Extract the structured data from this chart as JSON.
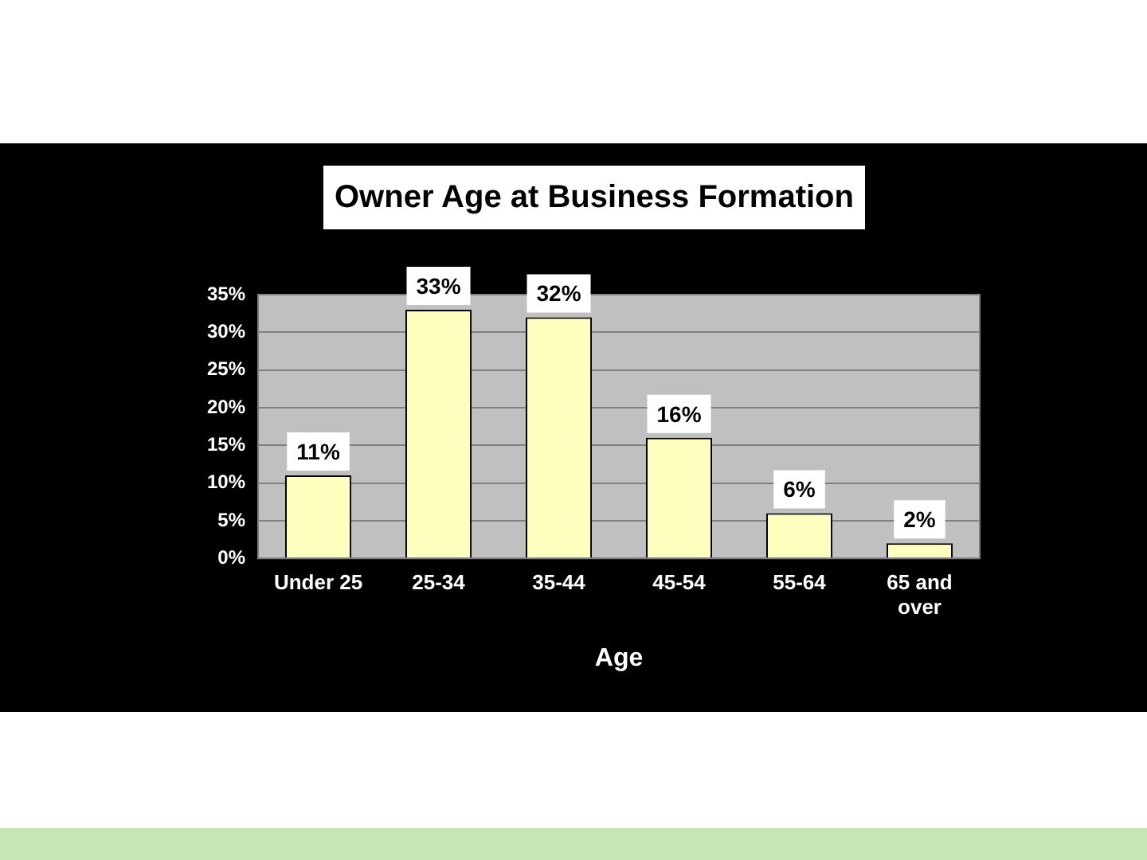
{
  "chart_data": {
    "type": "bar",
    "title": "Owner Age at Business Formation",
    "xlabel": "Age",
    "categories": [
      "Under 25",
      "25-34",
      "35-44",
      "45-54",
      "55-64",
      "65 and over"
    ],
    "values": [
      11,
      33,
      32,
      16,
      6,
      2
    ],
    "value_labels": [
      "11%",
      "33%",
      "32%",
      "16%",
      "6%",
      "2%"
    ],
    "color": "#ffffc0",
    "ylim": [
      0,
      35
    ],
    "yticks": [
      {
        "value": 0,
        "label": "0%"
      },
      {
        "value": 5,
        "label": "5%"
      },
      {
        "value": 10,
        "label": "10%"
      },
      {
        "value": 15,
        "label": "15%"
      },
      {
        "value": 20,
        "label": "20%"
      },
      {
        "value": 25,
        "label": "25%"
      },
      {
        "value": 30,
        "label": "30%"
      },
      {
        "value": 35,
        "label": "35%"
      }
    ],
    "grid": "y",
    "legend": false
  }
}
